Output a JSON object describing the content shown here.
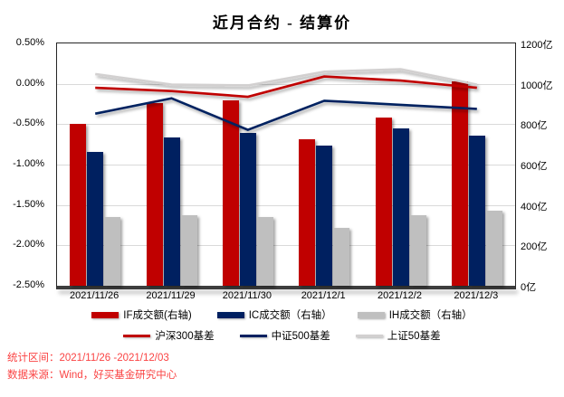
{
  "title": "近月合约 - 结算价",
  "chart_data": {
    "type": "combo-bar-line",
    "title": "近月合约 - 结算价",
    "categories": [
      "2021/11/26",
      "2021/11/29",
      "2021/11/30",
      "2021/12/1",
      "2021/12/2",
      "2021/12/3"
    ],
    "bar_series": [
      {
        "name": "IF成交额(右轴)",
        "axis": "right",
        "color": "#c00000",
        "values": [
          800,
          905,
          920,
          725,
          835,
          1010
        ]
      },
      {
        "name": "IC成交额（右轴）",
        "axis": "right",
        "color": "#002060",
        "values": [
          665,
          735,
          755,
          695,
          780,
          745
        ]
      },
      {
        "name": "IH成交额（右轴）",
        "axis": "right",
        "color": "#bfbfbf",
        "values": [
          340,
          350,
          340,
          285,
          350,
          370
        ]
      }
    ],
    "line_series": [
      {
        "name": "沪深300基差",
        "axis": "left",
        "color": "#c00000",
        "values": [
          -0.05,
          -0.09,
          -0.16,
          0.09,
          0.04,
          -0.05
        ]
      },
      {
        "name": "中证500基差",
        "axis": "left",
        "color": "#002060",
        "values": [
          -0.37,
          -0.18,
          -0.57,
          -0.21,
          -0.26,
          -0.31
        ]
      },
      {
        "name": "上证50基差",
        "axis": "left",
        "color": "#d2d0d0",
        "values": [
          0.12,
          -0.01,
          -0.02,
          0.15,
          0.18,
          -0.01
        ]
      }
    ],
    "left_axis": {
      "unit": "%",
      "max": 0.5,
      "min": -2.5,
      "ticks": [
        "0.50%",
        "0.00%",
        "-0.50%",
        "-1.00%",
        "-1.50%",
        "-2.00%",
        "-2.50%"
      ]
    },
    "right_axis": {
      "unit": "亿",
      "max": 1200,
      "min": 0,
      "ticks": [
        "1200亿",
        "1000亿",
        "800亿",
        "600亿",
        "400亿",
        "200亿",
        "0亿"
      ]
    },
    "grid": true,
    "legend_position": "bottom"
  },
  "footer": {
    "range_label": "统计区间：2021/11/26 -2021/12/03",
    "source_label": "数据来源：Wind，好买基金研究中心",
    "color": "#fa4343"
  }
}
